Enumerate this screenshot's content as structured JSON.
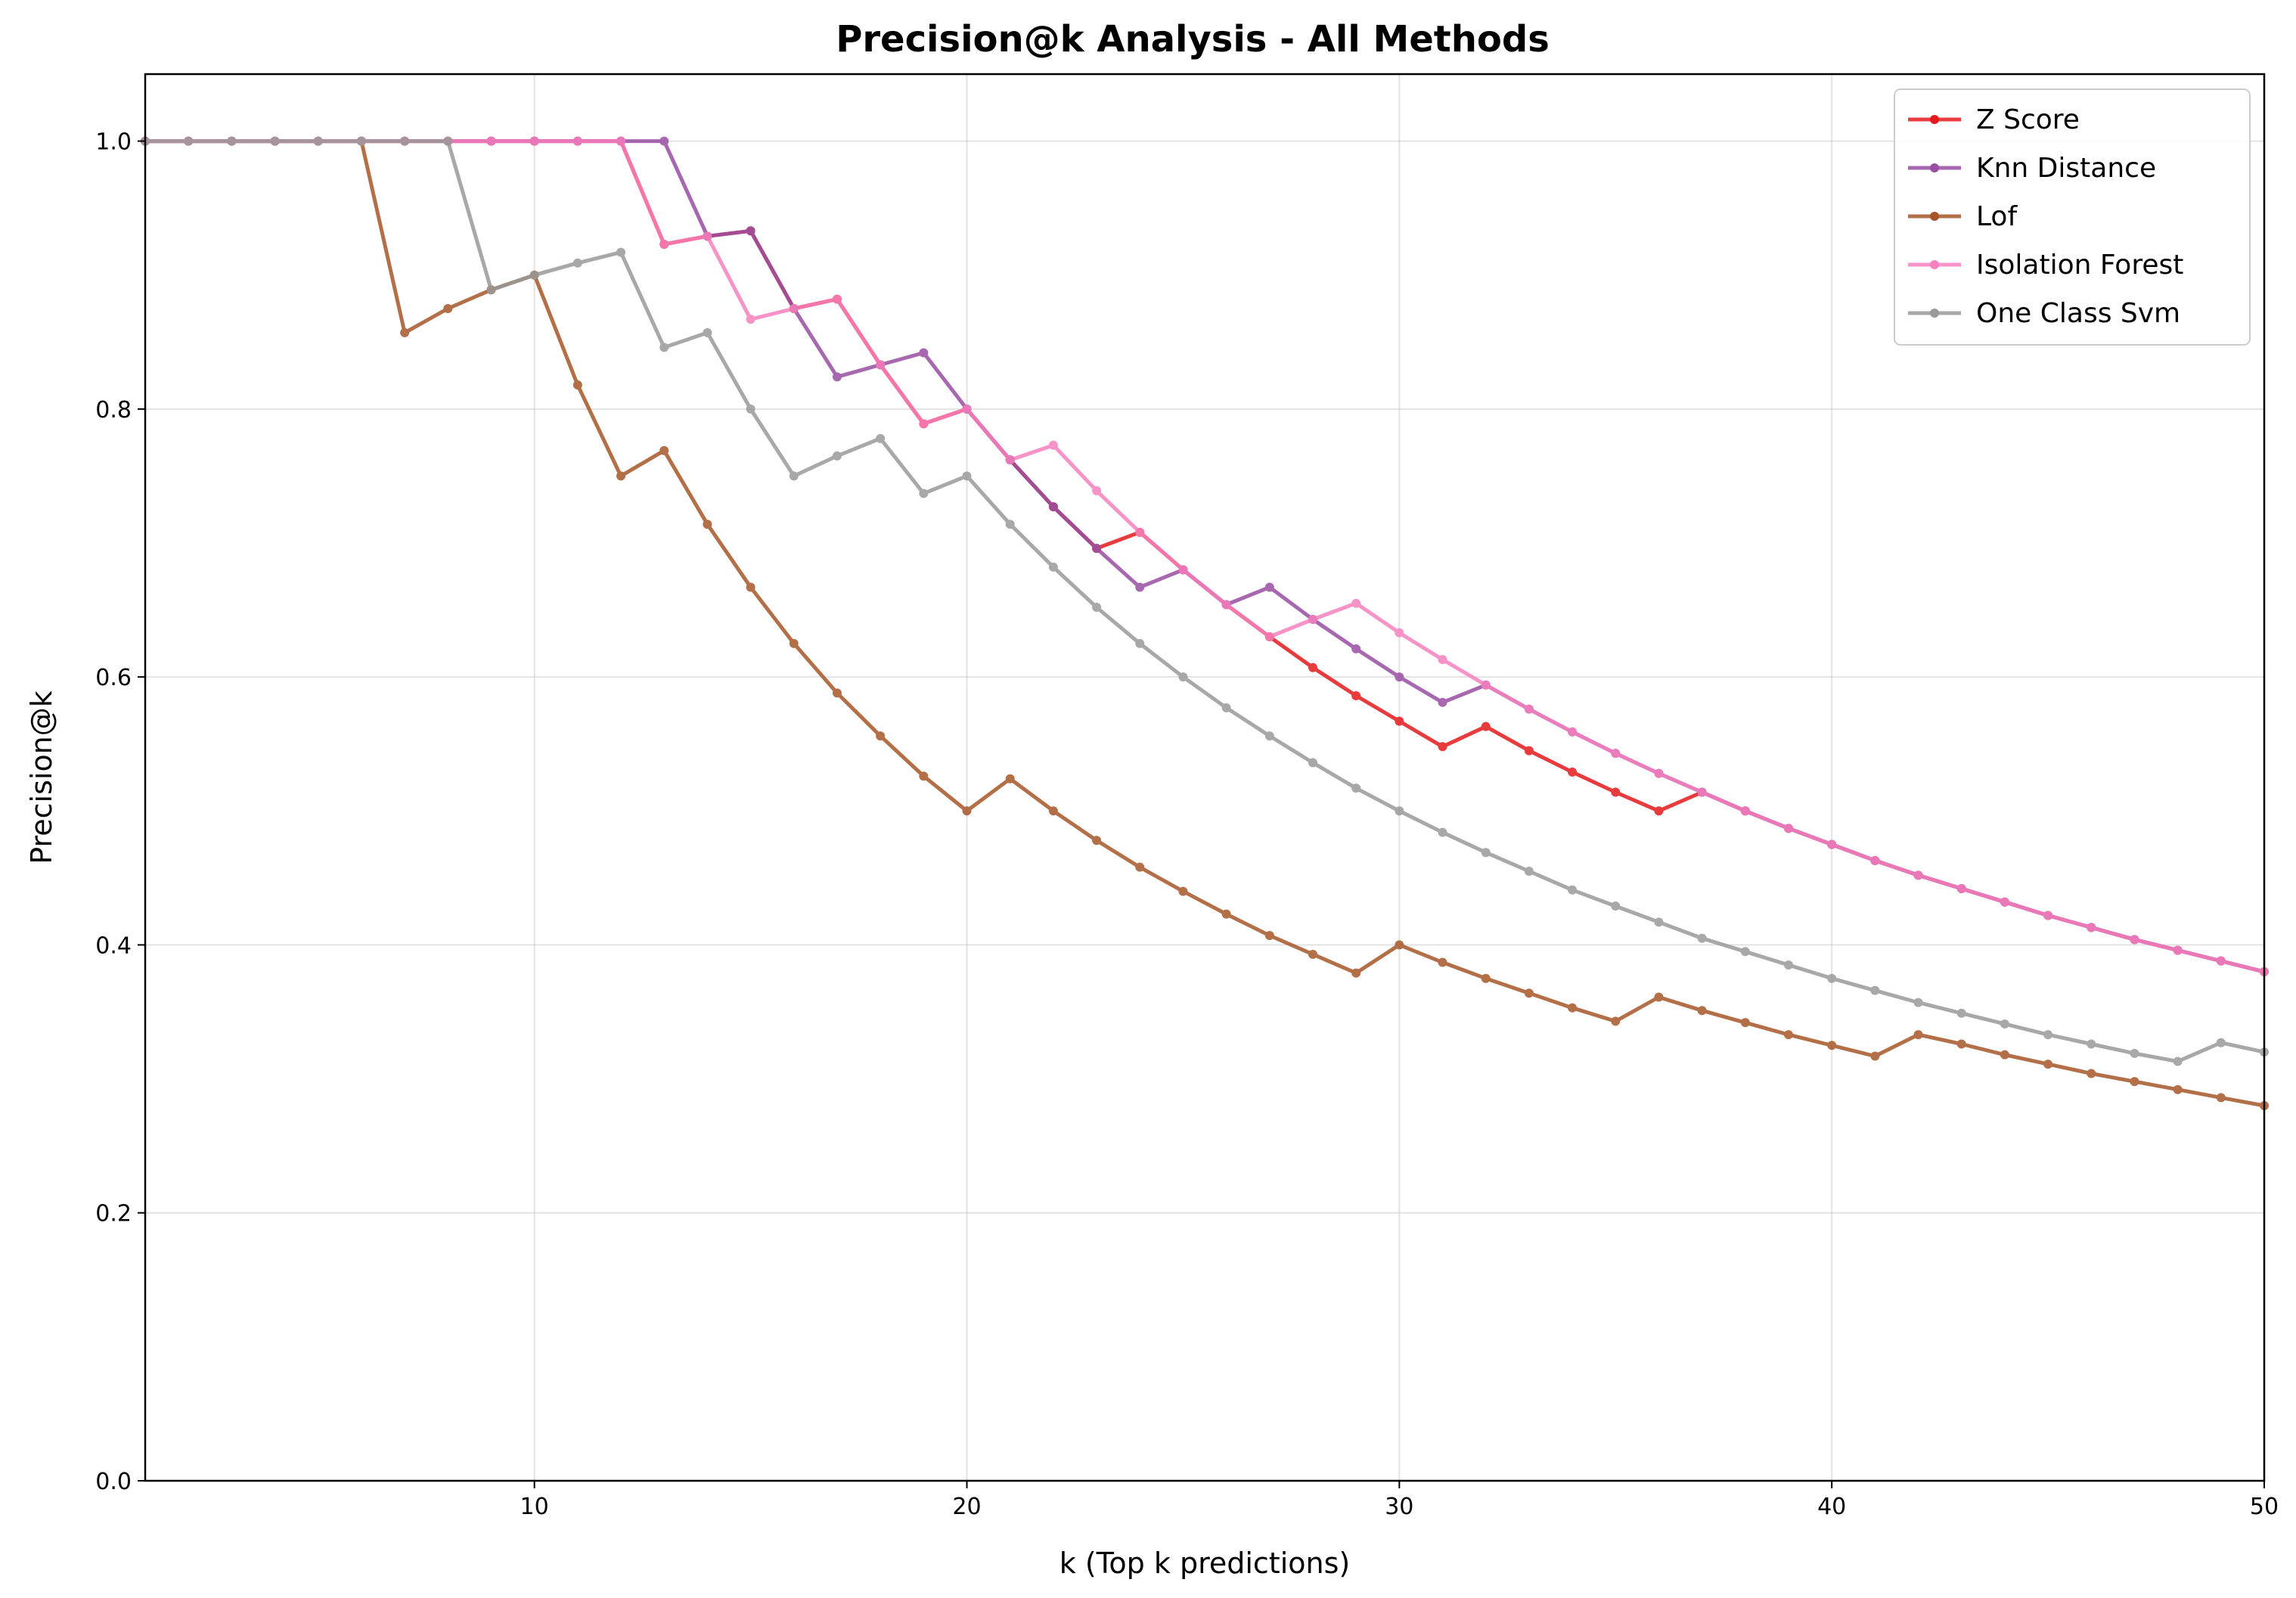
{
  "chart_data": {
    "type": "line",
    "title": "Precision@k Analysis - All Methods",
    "xlabel": "k (Top k predictions)",
    "ylabel": "Precision@k",
    "xlim": [
      1,
      50
    ],
    "ylim": [
      0.0,
      1.05
    ],
    "xticks": [
      10,
      20,
      30,
      40,
      50
    ],
    "xtick_labels": [
      "10",
      "20",
      "30",
      "40",
      "50"
    ],
    "yticks": [
      0.0,
      0.2,
      0.4,
      0.6,
      0.8,
      1.0
    ],
    "ytick_labels": [
      "0.0",
      "0.2",
      "0.4",
      "0.6",
      "0.8",
      "1.0"
    ],
    "grid": true,
    "legend_position": "top-right",
    "x": [
      1,
      2,
      3,
      4,
      5,
      6,
      7,
      8,
      9,
      10,
      11,
      12,
      13,
      14,
      15,
      16,
      17,
      18,
      19,
      20,
      21,
      22,
      23,
      24,
      25,
      26,
      27,
      28,
      29,
      30,
      31,
      32,
      33,
      34,
      35,
      36,
      37,
      38,
      39,
      40,
      41,
      42,
      43,
      44,
      45,
      46,
      47,
      48,
      49,
      50
    ],
    "series": [
      {
        "name": "Z Score",
        "color": "#e41a1c",
        "values": [
          1,
          1,
          1,
          1,
          1,
          1,
          1,
          1,
          1,
          1,
          1,
          1,
          0.923,
          0.929,
          0.933,
          0.875,
          0.882,
          0.833,
          0.789,
          0.8,
          0.762,
          0.727,
          0.696,
          0.708,
          0.68,
          0.654,
          0.63,
          0.607,
          0.586,
          0.567,
          0.548,
          0.563,
          0.545,
          0.529,
          0.514,
          0.5,
          0.514,
          0.5,
          0.487,
          0.475,
          0.463,
          0.452,
          0.442,
          0.432,
          0.422,
          0.413,
          0.404,
          0.396,
          0.388,
          0.38
        ]
      },
      {
        "name": "Knn Distance",
        "color": "#984ea3",
        "values": [
          1,
          1,
          1,
          1,
          1,
          1,
          1,
          1,
          1,
          1,
          1,
          1,
          1,
          0.929,
          0.933,
          0.875,
          0.824,
          0.833,
          0.842,
          0.8,
          0.762,
          0.727,
          0.696,
          0.667,
          0.68,
          0.654,
          0.667,
          0.643,
          0.621,
          0.6,
          0.581,
          0.594,
          0.576,
          0.559,
          0.543,
          0.528,
          0.514,
          0.5,
          0.487,
          0.475,
          0.463,
          0.452,
          0.442,
          0.432,
          0.422,
          0.413,
          0.404,
          0.396,
          0.388,
          0.38
        ]
      },
      {
        "name": "Lof",
        "color": "#a65628",
        "values": [
          1,
          1,
          1,
          1,
          1,
          1,
          0.857,
          0.875,
          0.889,
          0.9,
          0.818,
          0.75,
          0.769,
          0.714,
          0.667,
          0.625,
          0.588,
          0.556,
          0.526,
          0.5,
          0.524,
          0.5,
          0.478,
          0.458,
          0.44,
          0.423,
          0.407,
          0.393,
          0.379,
          0.4,
          0.387,
          0.375,
          0.364,
          0.353,
          0.343,
          0.361,
          0.351,
          0.342,
          0.333,
          0.325,
          0.317,
          0.333,
          0.326,
          0.318,
          0.311,
          0.304,
          0.298,
          0.292,
          0.286,
          0.28
        ]
      },
      {
        "name": "Isolation Forest",
        "color": "#f781bf",
        "values": [
          1,
          1,
          1,
          1,
          1,
          1,
          1,
          1,
          1,
          1,
          1,
          1,
          0.923,
          0.929,
          0.867,
          0.875,
          0.882,
          0.833,
          0.789,
          0.8,
          0.762,
          0.773,
          0.739,
          0.708,
          0.68,
          0.654,
          0.63,
          0.643,
          0.655,
          0.633,
          0.613,
          0.594,
          0.576,
          0.559,
          0.543,
          0.528,
          0.514,
          0.5,
          0.487,
          0.475,
          0.463,
          0.452,
          0.442,
          0.432,
          0.422,
          0.413,
          0.404,
          0.396,
          0.388,
          0.38
        ]
      },
      {
        "name": "One Class Svm",
        "color": "#999999",
        "values": [
          1,
          1,
          1,
          1,
          1,
          1,
          1,
          1,
          0.889,
          0.9,
          0.909,
          0.917,
          0.846,
          0.857,
          0.8,
          0.75,
          0.765,
          0.778,
          0.737,
          0.75,
          0.714,
          0.682,
          0.652,
          0.625,
          0.6,
          0.577,
          0.556,
          0.536,
          0.517,
          0.5,
          0.484,
          0.469,
          0.455,
          0.441,
          0.429,
          0.417,
          0.405,
          0.395,
          0.385,
          0.375,
          0.366,
          0.357,
          0.349,
          0.341,
          0.333,
          0.326,
          0.319,
          0.313,
          0.327,
          0.32
        ]
      }
    ]
  }
}
